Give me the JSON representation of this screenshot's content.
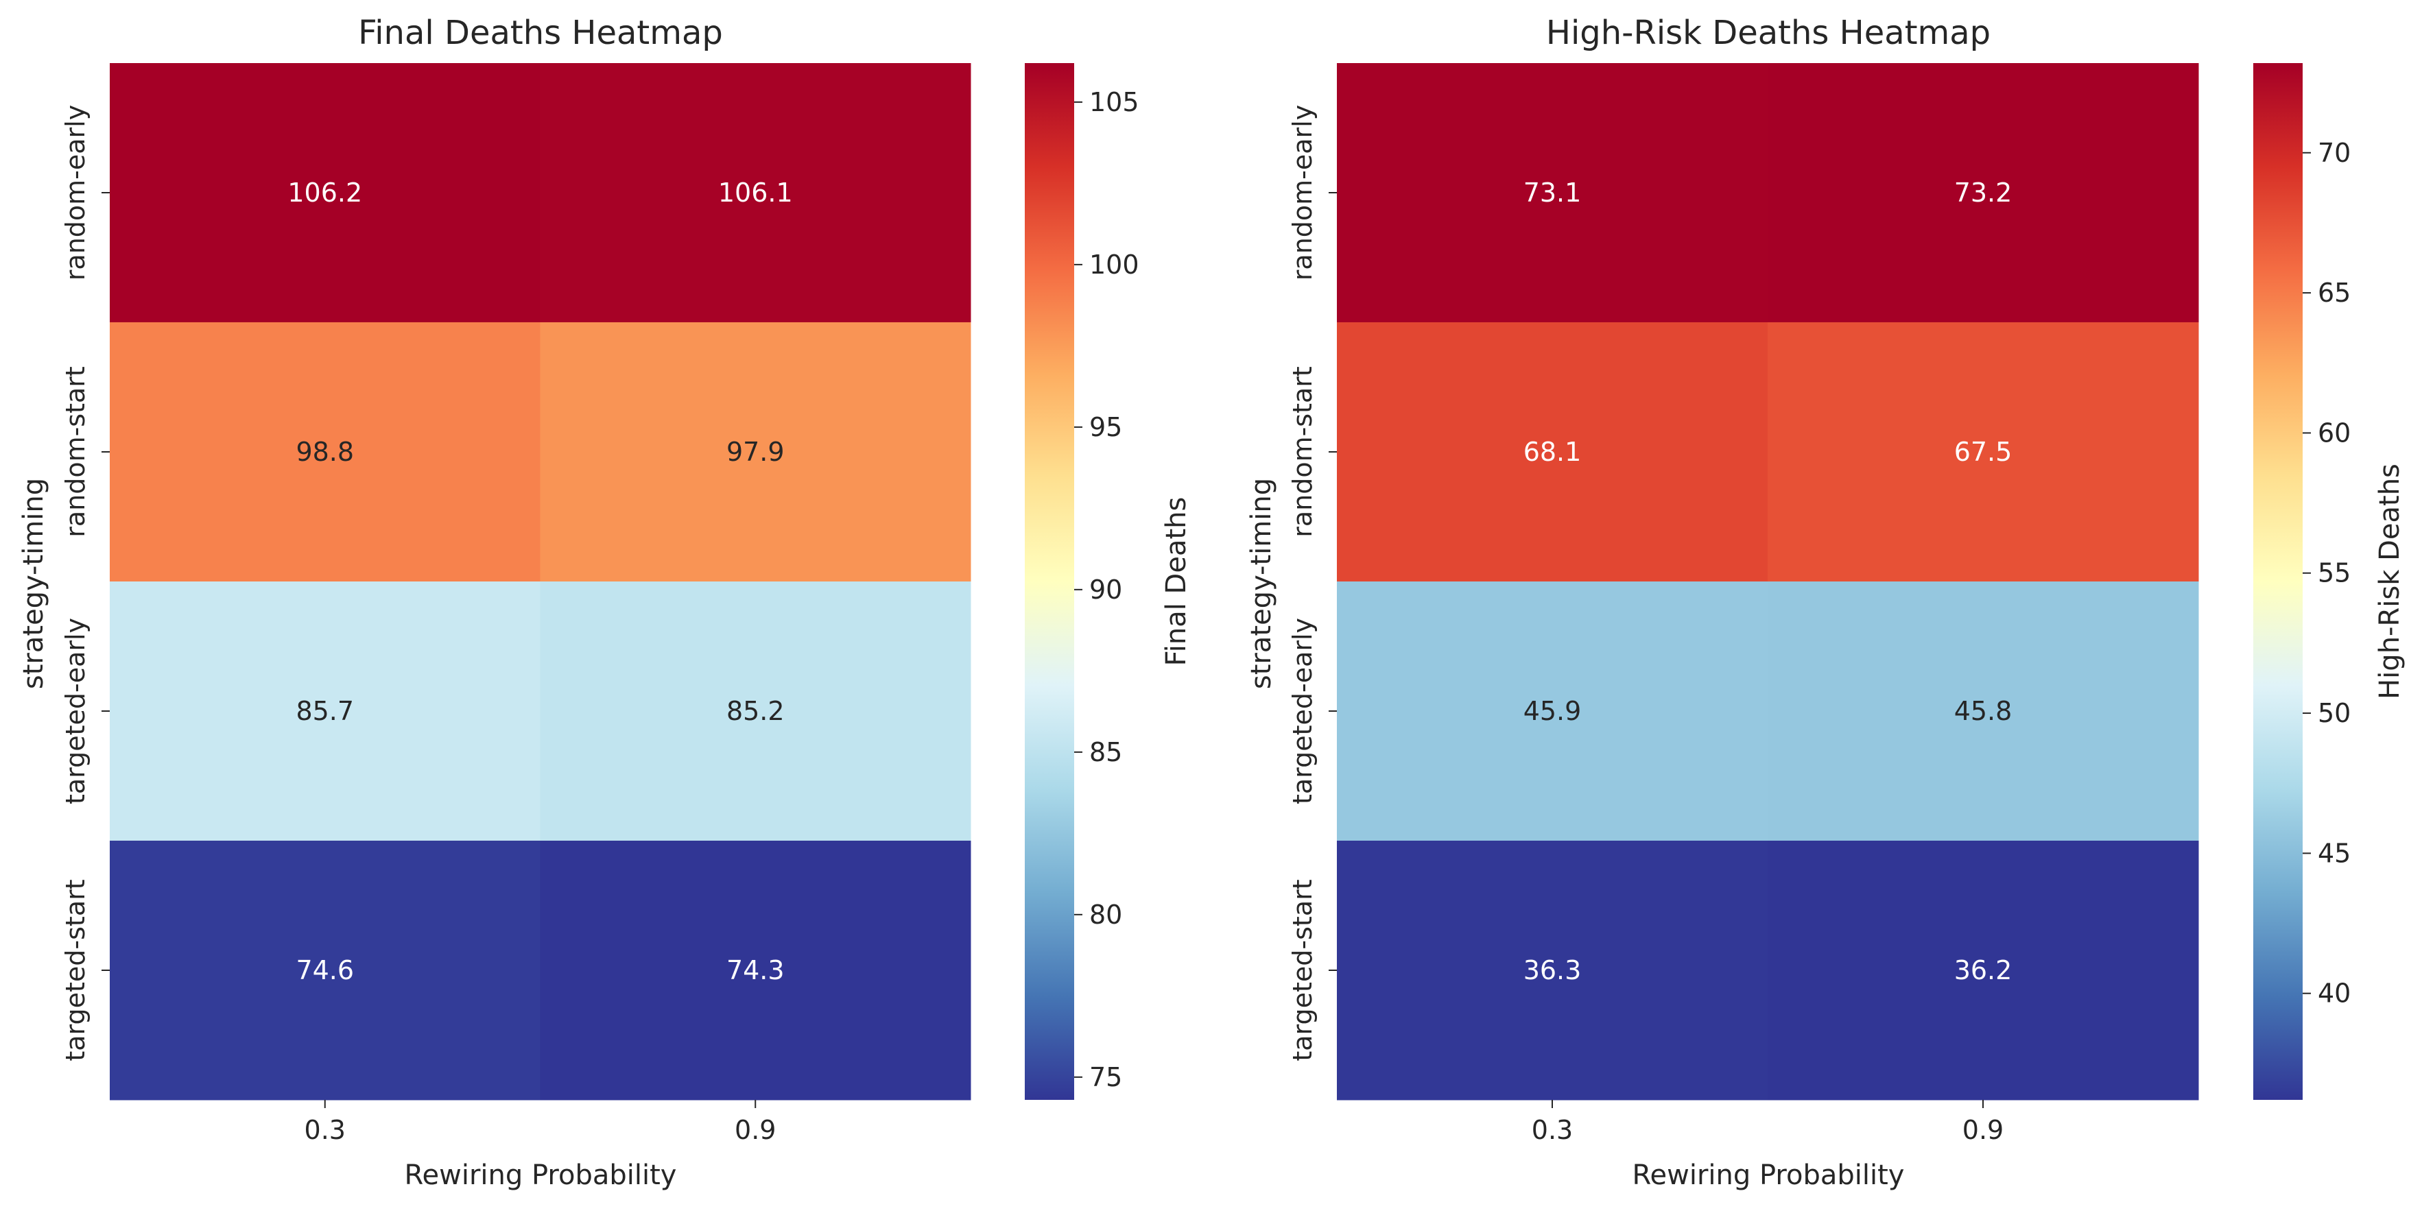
{
  "colors": {
    "colormap": "RdYlBu_r",
    "text_on_dark": "#ffffff",
    "text_on_light": "#262626"
  },
  "chart_data": [
    {
      "type": "heatmap",
      "title": "Final Deaths Heatmap",
      "xlabel": "Rewiring Probability",
      "ylabel": "strategy-timing",
      "x_categories": [
        "0.3",
        "0.9"
      ],
      "y_categories": [
        "random-early",
        "random-start",
        "targeted-early",
        "targeted-start"
      ],
      "values": [
        [
          106.2,
          106.1
        ],
        [
          98.8,
          97.9
        ],
        [
          85.7,
          85.2
        ],
        [
          74.6,
          74.3
        ]
      ],
      "cell_labels": [
        [
          "106.2",
          "106.1"
        ],
        [
          "98.8",
          "97.9"
        ],
        [
          "85.7",
          "85.2"
        ],
        [
          "74.6",
          "74.3"
        ]
      ],
      "colorbar": {
        "label": "Final Deaths",
        "vmin": 74.3,
        "vmax": 106.2,
        "ticks": [
          75,
          80,
          85,
          90,
          95,
          100,
          105
        ],
        "tick_labels": [
          "75",
          "80",
          "85",
          "90",
          "95",
          "100",
          "105"
        ]
      },
      "grid": false,
      "colorbar_placement": "right"
    },
    {
      "type": "heatmap",
      "title": "High-Risk Deaths Heatmap",
      "xlabel": "Rewiring Probability",
      "ylabel": "strategy-timing",
      "x_categories": [
        "0.3",
        "0.9"
      ],
      "y_categories": [
        "random-early",
        "random-start",
        "targeted-early",
        "targeted-start"
      ],
      "values": [
        [
          73.1,
          73.2
        ],
        [
          68.1,
          67.5
        ],
        [
          45.9,
          45.8
        ],
        [
          36.3,
          36.2
        ]
      ],
      "cell_labels": [
        [
          "73.1",
          "73.2"
        ],
        [
          "68.1",
          "67.5"
        ],
        [
          "45.9",
          "45.8"
        ],
        [
          "36.3",
          "36.2"
        ]
      ],
      "colorbar": {
        "label": "High-Risk Deaths",
        "vmin": 36.2,
        "vmax": 73.2,
        "ticks": [
          40,
          45,
          50,
          55,
          60,
          65,
          70
        ],
        "tick_labels": [
          "40",
          "45",
          "50",
          "55",
          "60",
          "65",
          "70"
        ]
      },
      "grid": false,
      "colorbar_placement": "right"
    }
  ]
}
